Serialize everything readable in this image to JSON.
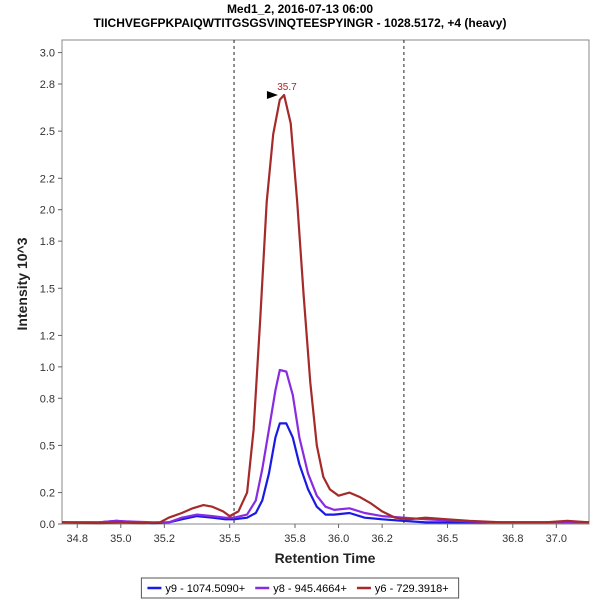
{
  "chart_data": {
    "type": "line",
    "title": "Med1_2, 2016-07-13 06:00",
    "subtitle": "TIICHVEGFPKPAIQWTITGSGSVINQTEESPYINGR - 1028.5172, +4 (heavy)",
    "xlabel": "Retention Time",
    "ylabel": "Intensity 10^3",
    "xlim": [
      34.73,
      37.15
    ],
    "ylim": [
      0,
      3.08
    ],
    "x_ticks": [
      34.8,
      35.0,
      35.2,
      35.5,
      35.8,
      36.0,
      36.2,
      36.5,
      36.8,
      37.0
    ],
    "x_tick_labels": [
      "34.8",
      "35.0",
      "35.2",
      "35.5",
      "35.8",
      "36.0",
      "36.2",
      "36.5",
      "36.8",
      "37.0"
    ],
    "y_ticks": [
      0.0,
      0.2,
      0.5,
      0.8,
      1.0,
      1.2,
      1.5,
      1.8,
      2.0,
      2.2,
      2.5,
      2.8,
      3.0
    ],
    "y_tick_labels": [
      "0.0",
      "0.2",
      "0.5",
      "0.8",
      "1.0",
      "1.2",
      "1.5",
      "1.8",
      "2.0",
      "2.2",
      "2.5",
      "2.8",
      "3.0"
    ],
    "integration_bounds": [
      35.52,
      36.3
    ],
    "peak_annotation": {
      "label": "35.7",
      "x": 35.74,
      "y": 2.73,
      "color": "#b22222"
    },
    "legend_position": "bottom-center",
    "series": [
      {
        "name": "y9 - 1074.5090+",
        "color": "#1a1ae6",
        "points": [
          [
            34.73,
            0.01
          ],
          [
            34.9,
            0.01
          ],
          [
            34.98,
            0.02
          ],
          [
            35.05,
            0.01
          ],
          [
            35.15,
            0.005
          ],
          [
            35.22,
            0.01
          ],
          [
            35.28,
            0.03
          ],
          [
            35.35,
            0.05
          ],
          [
            35.42,
            0.04
          ],
          [
            35.48,
            0.03
          ],
          [
            35.52,
            0.03
          ],
          [
            35.58,
            0.04
          ],
          [
            35.62,
            0.07
          ],
          [
            35.65,
            0.15
          ],
          [
            35.68,
            0.32
          ],
          [
            35.71,
            0.55
          ],
          [
            35.73,
            0.64
          ],
          [
            35.76,
            0.64
          ],
          [
            35.79,
            0.55
          ],
          [
            35.82,
            0.38
          ],
          [
            35.86,
            0.22
          ],
          [
            35.9,
            0.11
          ],
          [
            35.94,
            0.06
          ],
          [
            35.98,
            0.06
          ],
          [
            36.05,
            0.07
          ],
          [
            36.12,
            0.04
          ],
          [
            36.2,
            0.03
          ],
          [
            36.3,
            0.02
          ],
          [
            36.4,
            0.01
          ],
          [
            36.6,
            0.01
          ],
          [
            36.8,
            0.01
          ],
          [
            37.0,
            0.01
          ],
          [
            37.15,
            0.01
          ]
        ]
      },
      {
        "name": "y8 - 945.4664+",
        "color": "#8a2be2",
        "points": [
          [
            34.73,
            0.01
          ],
          [
            34.9,
            0.01
          ],
          [
            34.98,
            0.02
          ],
          [
            35.05,
            0.015
          ],
          [
            35.15,
            0.01
          ],
          [
            35.22,
            0.01
          ],
          [
            35.28,
            0.04
          ],
          [
            35.35,
            0.06
          ],
          [
            35.42,
            0.05
          ],
          [
            35.48,
            0.04
          ],
          [
            35.52,
            0.04
          ],
          [
            35.58,
            0.06
          ],
          [
            35.62,
            0.15
          ],
          [
            35.65,
            0.35
          ],
          [
            35.68,
            0.6
          ],
          [
            35.71,
            0.85
          ],
          [
            35.73,
            0.98
          ],
          [
            35.76,
            0.97
          ],
          [
            35.79,
            0.82
          ],
          [
            35.82,
            0.55
          ],
          [
            35.86,
            0.32
          ],
          [
            35.9,
            0.18
          ],
          [
            35.94,
            0.11
          ],
          [
            35.98,
            0.09
          ],
          [
            36.05,
            0.1
          ],
          [
            36.12,
            0.07
          ],
          [
            36.2,
            0.05
          ],
          [
            36.3,
            0.04
          ],
          [
            36.4,
            0.03
          ],
          [
            36.55,
            0.02
          ],
          [
            36.7,
            0.01
          ],
          [
            36.9,
            0.01
          ],
          [
            37.15,
            0.01
          ]
        ]
      },
      {
        "name": "y6 - 729.3918+",
        "color": "#a52a2a",
        "points": [
          [
            34.73,
            0.01
          ],
          [
            34.9,
            0.005
          ],
          [
            35.0,
            0.01
          ],
          [
            35.1,
            0.005
          ],
          [
            35.18,
            0.01
          ],
          [
            35.22,
            0.04
          ],
          [
            35.28,
            0.07
          ],
          [
            35.33,
            0.1
          ],
          [
            35.38,
            0.12
          ],
          [
            35.42,
            0.11
          ],
          [
            35.47,
            0.08
          ],
          [
            35.5,
            0.05
          ],
          [
            35.54,
            0.08
          ],
          [
            35.58,
            0.2
          ],
          [
            35.61,
            0.6
          ],
          [
            35.64,
            1.3
          ],
          [
            35.67,
            2.05
          ],
          [
            35.7,
            2.48
          ],
          [
            35.73,
            2.7
          ],
          [
            35.75,
            2.73
          ],
          [
            35.78,
            2.55
          ],
          [
            35.81,
            2.05
          ],
          [
            35.84,
            1.45
          ],
          [
            35.87,
            0.9
          ],
          [
            35.9,
            0.5
          ],
          [
            35.93,
            0.3
          ],
          [
            35.96,
            0.22
          ],
          [
            36.0,
            0.18
          ],
          [
            36.05,
            0.2
          ],
          [
            36.1,
            0.17
          ],
          [
            36.15,
            0.13
          ],
          [
            36.2,
            0.08
          ],
          [
            36.26,
            0.04
          ],
          [
            36.32,
            0.03
          ],
          [
            36.4,
            0.04
          ],
          [
            36.5,
            0.03
          ],
          [
            36.6,
            0.02
          ],
          [
            36.75,
            0.01
          ],
          [
            36.95,
            0.01
          ],
          [
            37.05,
            0.02
          ],
          [
            37.15,
            0.01
          ]
        ]
      }
    ]
  }
}
